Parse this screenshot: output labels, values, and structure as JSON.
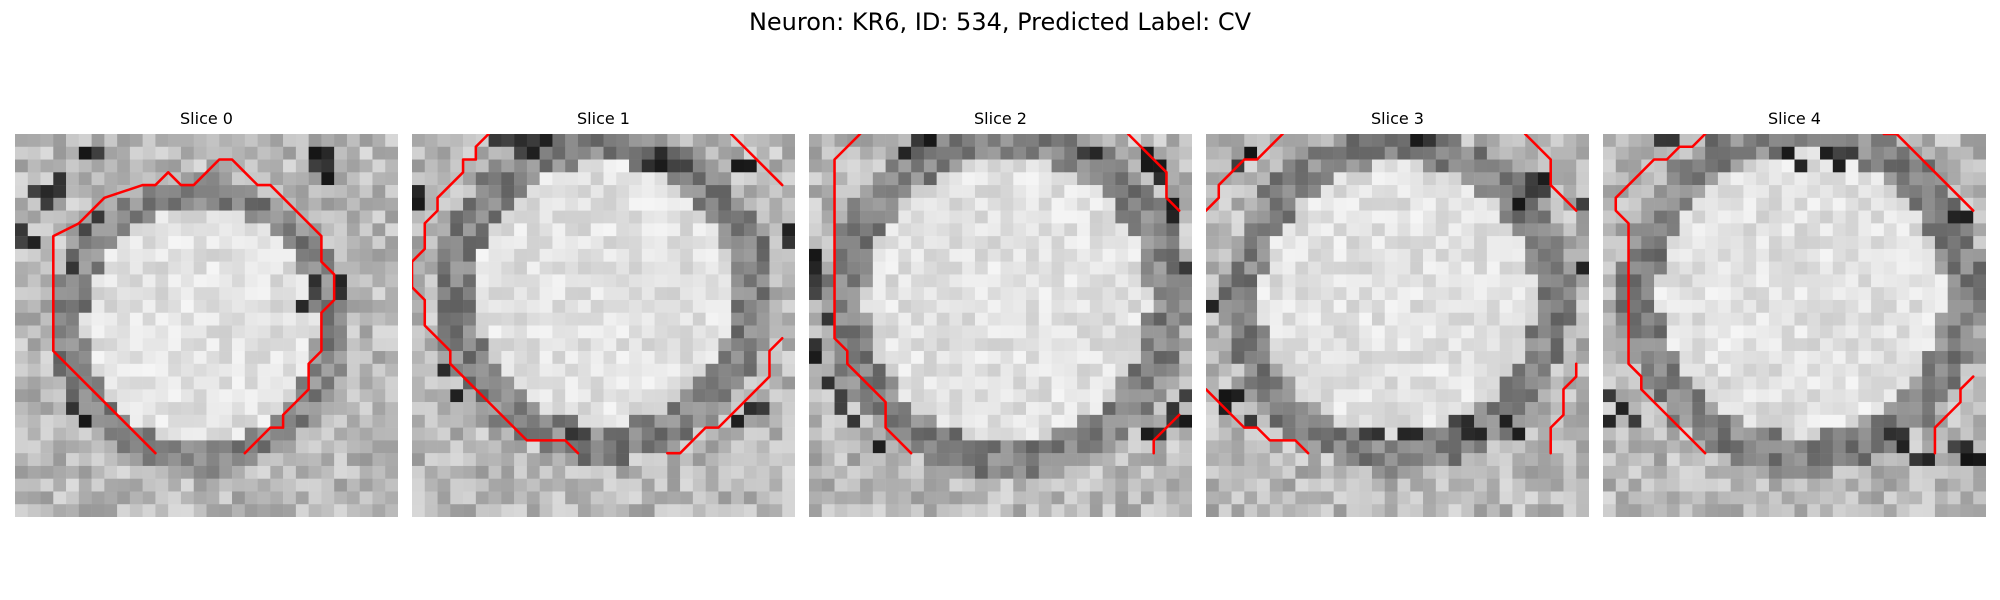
{
  "figure": {
    "title": "Neuron: KR6, ID: 534, Predicted Label: CV"
  },
  "panels": [
    {
      "title": "Slice 0",
      "contour": [
        [
          [
            11,
            25
          ],
          [
            6,
            20
          ],
          [
            3,
            17
          ],
          [
            3,
            8
          ],
          [
            5,
            7
          ],
          [
            7,
            5
          ],
          [
            10,
            4
          ],
          [
            11,
            4
          ],
          [
            12,
            3
          ],
          [
            13,
            4
          ],
          [
            14,
            4
          ],
          [
            15,
            3
          ],
          [
            16,
            2
          ],
          [
            17,
            2
          ],
          [
            18,
            3
          ],
          [
            18,
            3
          ],
          [
            19,
            4
          ],
          [
            20,
            4
          ],
          [
            21,
            5
          ],
          [
            22,
            6
          ],
          [
            23,
            7
          ],
          [
            24,
            8
          ],
          [
            24,
            10
          ],
          [
            25,
            11
          ],
          [
            25,
            13
          ],
          [
            24,
            14
          ],
          [
            24,
            17
          ],
          [
            23,
            18
          ],
          [
            23,
            20
          ],
          [
            22,
            21
          ],
          [
            21,
            22
          ],
          [
            21,
            23
          ],
          [
            20,
            23
          ],
          [
            19,
            24
          ],
          [
            18,
            25
          ]
        ]
      ],
      "dark": [
        [
          2,
          4
        ],
        [
          2,
          5
        ],
        [
          3,
          4
        ],
        [
          1,
          4
        ],
        [
          3,
          3
        ],
        [
          23,
          2
        ],
        [
          24,
          2
        ],
        [
          24,
          3
        ],
        [
          23,
          1
        ],
        [
          24,
          1
        ],
        [
          0,
          7
        ],
        [
          0,
          8
        ],
        [
          1,
          8
        ],
        [
          4,
          10
        ],
        [
          4,
          21
        ],
        [
          5,
          22
        ],
        [
          22,
          13
        ],
        [
          23,
          11
        ],
        [
          23,
          12
        ],
        [
          25,
          11
        ],
        [
          25,
          12
        ],
        [
          5,
          1
        ],
        [
          6,
          1
        ],
        [
          6,
          6
        ],
        [
          5,
          7
        ]
      ]
    },
    {
      "title": "Slice 1",
      "contour": [
        [
          [
            6,
            0
          ],
          [
            5,
            1
          ],
          [
            5,
            2
          ],
          [
            4,
            2
          ],
          [
            4,
            3
          ],
          [
            3,
            4
          ],
          [
            2,
            5
          ],
          [
            2,
            6
          ],
          [
            1,
            7
          ],
          [
            1,
            8
          ],
          [
            1,
            9
          ],
          [
            0,
            10
          ],
          [
            0,
            11
          ],
          [
            0,
            12
          ],
          [
            1,
            13
          ],
          [
            1,
            15
          ],
          [
            2,
            16
          ],
          [
            3,
            17
          ],
          [
            3,
            18
          ],
          [
            4,
            19
          ],
          [
            5,
            20
          ],
          [
            6,
            21
          ],
          [
            7,
            22
          ],
          [
            8,
            23
          ],
          [
            9,
            24
          ],
          [
            12,
            24
          ],
          [
            13,
            25
          ]
        ],
        [
          [
            20,
            25
          ],
          [
            21,
            25
          ],
          [
            22,
            24
          ],
          [
            23,
            23
          ],
          [
            24,
            23
          ],
          [
            25,
            22
          ],
          [
            26,
            21
          ],
          [
            27,
            20
          ],
          [
            28,
            19
          ],
          [
            28,
            17
          ],
          [
            29,
            16
          ]
        ],
        [
          [
            25,
            0
          ],
          [
            26,
            1
          ],
          [
            27,
            2
          ],
          [
            28,
            3
          ],
          [
            29,
            4
          ]
        ]
      ],
      "dark": [
        [
          7,
          0
        ],
        [
          8,
          0
        ],
        [
          9,
          0
        ],
        [
          9,
          1
        ],
        [
          8,
          1
        ],
        [
          6,
          0
        ],
        [
          10,
          0
        ],
        [
          19,
          1
        ],
        [
          19,
          2
        ],
        [
          20,
          2
        ],
        [
          18,
          2
        ],
        [
          21,
          2
        ],
        [
          25,
          2
        ],
        [
          26,
          2
        ],
        [
          0,
          4
        ],
        [
          0,
          5
        ],
        [
          29,
          7
        ],
        [
          29,
          8
        ],
        [
          2,
          18
        ],
        [
          3,
          20
        ],
        [
          26,
          21
        ],
        [
          27,
          21
        ],
        [
          25,
          22
        ],
        [
          12,
          23
        ],
        [
          13,
          23
        ]
      ]
    },
    {
      "title": "Slice 2",
      "contour": [
        [
          [
            4,
            0
          ],
          [
            3,
            1
          ],
          [
            2,
            2
          ],
          [
            2,
            16
          ],
          [
            3,
            17
          ],
          [
            3,
            18
          ],
          [
            4,
            19
          ],
          [
            5,
            20
          ],
          [
            6,
            21
          ],
          [
            6,
            23
          ],
          [
            7,
            24
          ],
          [
            8,
            25
          ]
        ],
        [
          [
            25,
            0
          ],
          [
            26,
            1
          ],
          [
            27,
            2
          ],
          [
            28,
            3
          ],
          [
            28,
            4
          ],
          [
            28,
            5
          ],
          [
            29,
            6
          ]
        ],
        [
          [
            27,
            25
          ],
          [
            27,
            24
          ],
          [
            28,
            23
          ],
          [
            29,
            22
          ]
        ]
      ],
      "dark": [
        [
          0,
          9
        ],
        [
          0,
          10
        ],
        [
          0,
          11
        ],
        [
          0,
          12
        ],
        [
          1,
          14
        ],
        [
          0,
          16
        ],
        [
          0,
          17
        ],
        [
          1,
          19
        ],
        [
          2,
          20
        ],
        [
          2,
          21
        ],
        [
          3,
          22
        ],
        [
          29,
          20
        ],
        [
          28,
          22
        ],
        [
          29,
          22
        ],
        [
          28,
          21
        ],
        [
          26,
          23
        ],
        [
          27,
          23
        ],
        [
          27,
          3
        ],
        [
          27,
          2
        ],
        [
          26,
          2
        ],
        [
          26,
          1
        ],
        [
          28,
          5
        ],
        [
          28,
          6
        ],
        [
          29,
          10
        ],
        [
          8,
          0
        ],
        [
          9,
          0
        ],
        [
          7,
          1
        ],
        [
          21,
          1
        ],
        [
          22,
          1
        ],
        [
          5,
          24
        ]
      ]
    },
    {
      "title": "Slice 3",
      "contour": [
        [
          [
            0,
            6
          ],
          [
            1,
            5
          ],
          [
            1,
            4
          ],
          [
            2,
            3
          ],
          [
            3,
            2
          ],
          [
            4,
            2
          ],
          [
            5,
            1
          ],
          [
            6,
            0
          ]
        ],
        [
          [
            25,
            0
          ],
          [
            26,
            1
          ],
          [
            27,
            2
          ],
          [
            27,
            3
          ],
          [
            27,
            4
          ],
          [
            28,
            5
          ],
          [
            29,
            6
          ]
        ],
        [
          [
            0,
            20
          ],
          [
            1,
            21
          ],
          [
            2,
            22
          ],
          [
            3,
            23
          ],
          [
            4,
            23
          ],
          [
            5,
            24
          ],
          [
            7,
            24
          ],
          [
            8,
            25
          ]
        ],
        [
          [
            27,
            25
          ],
          [
            27,
            23
          ],
          [
            28,
            22
          ],
          [
            28,
            20
          ],
          [
            29,
            19
          ],
          [
            29,
            18
          ]
        ]
      ],
      "dark": [
        [
          25,
          4
        ],
        [
          26,
          4
        ],
        [
          25,
          3
        ],
        [
          26,
          3
        ],
        [
          24,
          5
        ],
        [
          19,
          22
        ],
        [
          20,
          22
        ],
        [
          21,
          23
        ],
        [
          20,
          23
        ],
        [
          1,
          20
        ],
        [
          2,
          20
        ],
        [
          1,
          21
        ],
        [
          3,
          22
        ],
        [
          15,
          23
        ],
        [
          16,
          23
        ],
        [
          23,
          22
        ],
        [
          24,
          23
        ],
        [
          29,
          5
        ],
        [
          29,
          10
        ],
        [
          0,
          13
        ],
        [
          2,
          2
        ],
        [
          3,
          1
        ],
        [
          16,
          0
        ],
        [
          17,
          0
        ],
        [
          12,
          23
        ],
        [
          13,
          23
        ]
      ]
    },
    {
      "title": "Slice 4",
      "contour": [
        [
          [
            8,
            0
          ],
          [
            7,
            1
          ],
          [
            6,
            1
          ],
          [
            5,
            2
          ],
          [
            4,
            2
          ],
          [
            3,
            3
          ],
          [
            2,
            4
          ],
          [
            1,
            5
          ],
          [
            1,
            6
          ],
          [
            2,
            7
          ],
          [
            2,
            18
          ],
          [
            3,
            19
          ],
          [
            3,
            20
          ],
          [
            4,
            21
          ],
          [
            5,
            22
          ],
          [
            6,
            23
          ],
          [
            7,
            24
          ],
          [
            8,
            25
          ]
        ],
        [
          [
            22,
            0
          ],
          [
            23,
            0
          ],
          [
            24,
            1
          ],
          [
            25,
            2
          ],
          [
            26,
            3
          ],
          [
            27,
            4
          ],
          [
            28,
            5
          ],
          [
            29,
            6
          ]
        ],
        [
          [
            26,
            25
          ],
          [
            26,
            23
          ],
          [
            27,
            22
          ],
          [
            28,
            21
          ],
          [
            28,
            20
          ],
          [
            29,
            19
          ]
        ]
      ],
      "dark": [
        [
          18,
          1
        ],
        [
          17,
          1
        ],
        [
          18,
          2
        ],
        [
          19,
          1
        ],
        [
          28,
          25
        ],
        [
          29,
          25
        ],
        [
          27,
          24
        ],
        [
          28,
          24
        ],
        [
          25,
          25
        ],
        [
          24,
          25
        ],
        [
          22,
          23
        ],
        [
          23,
          23
        ],
        [
          23,
          24
        ],
        [
          4,
          0
        ],
        [
          5,
          0
        ],
        [
          0,
          20
        ],
        [
          1,
          21
        ],
        [
          0,
          22
        ],
        [
          2,
          22
        ],
        [
          27,
          6
        ],
        [
          28,
          6
        ],
        [
          14,
          1
        ],
        [
          15,
          2
        ]
      ]
    }
  ]
}
